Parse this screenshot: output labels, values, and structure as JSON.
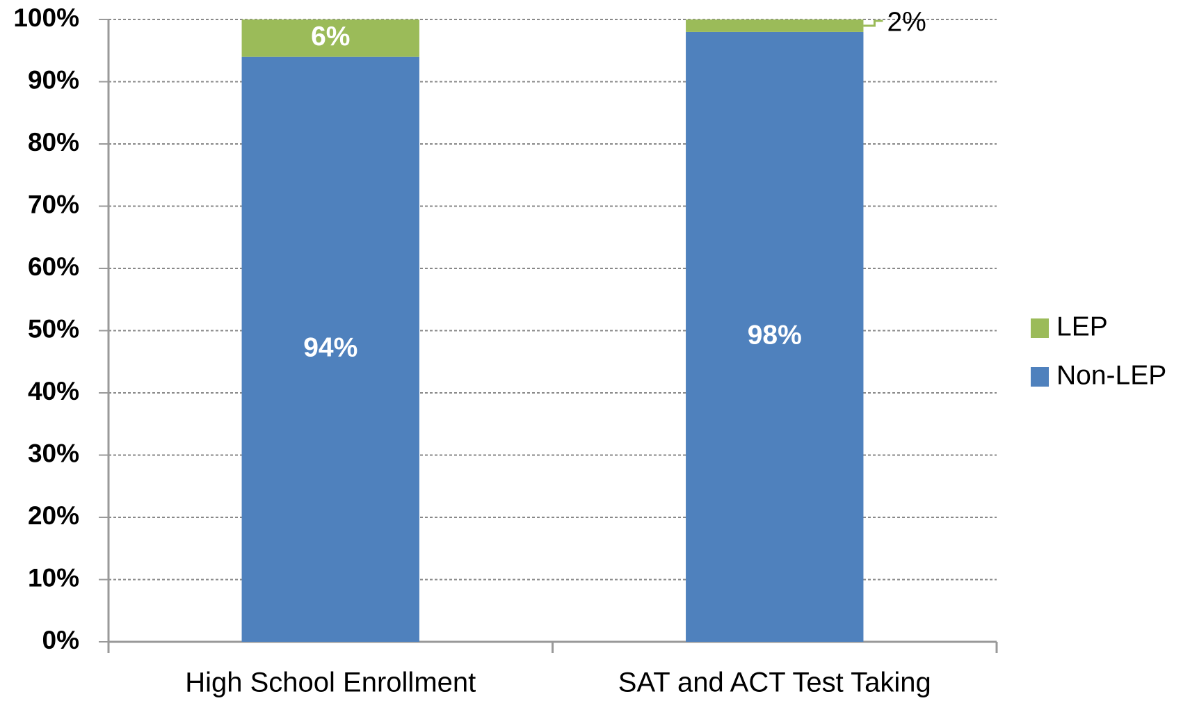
{
  "chart_data": {
    "type": "stacked_bar",
    "categories": [
      "High School Enrollment",
      "SAT and ACT Test Taking"
    ],
    "series": [
      {
        "name": "Non-LEP",
        "color": "#4f81bd",
        "values": [
          94,
          98
        ],
        "value_labels": [
          "94%",
          "98%"
        ]
      },
      {
        "name": "LEP",
        "color": "#9bbb59",
        "values": [
          6,
          2
        ],
        "value_labels": [
          "6%",
          "2%"
        ]
      }
    ],
    "ylim": [
      0,
      100
    ],
    "yticks": [
      {
        "value": 0,
        "label": "0%"
      },
      {
        "value": 10,
        "label": "10%"
      },
      {
        "value": 20,
        "label": "20%"
      },
      {
        "value": 30,
        "label": "30%"
      },
      {
        "value": 40,
        "label": "40%"
      },
      {
        "value": 50,
        "label": "50%"
      },
      {
        "value": 60,
        "label": "60%"
      },
      {
        "value": 70,
        "label": "70%"
      },
      {
        "value": 80,
        "label": "80%"
      },
      {
        "value": 90,
        "label": "90%"
      },
      {
        "value": 100,
        "label": "100%"
      }
    ],
    "grid": true,
    "legend": "right"
  }
}
